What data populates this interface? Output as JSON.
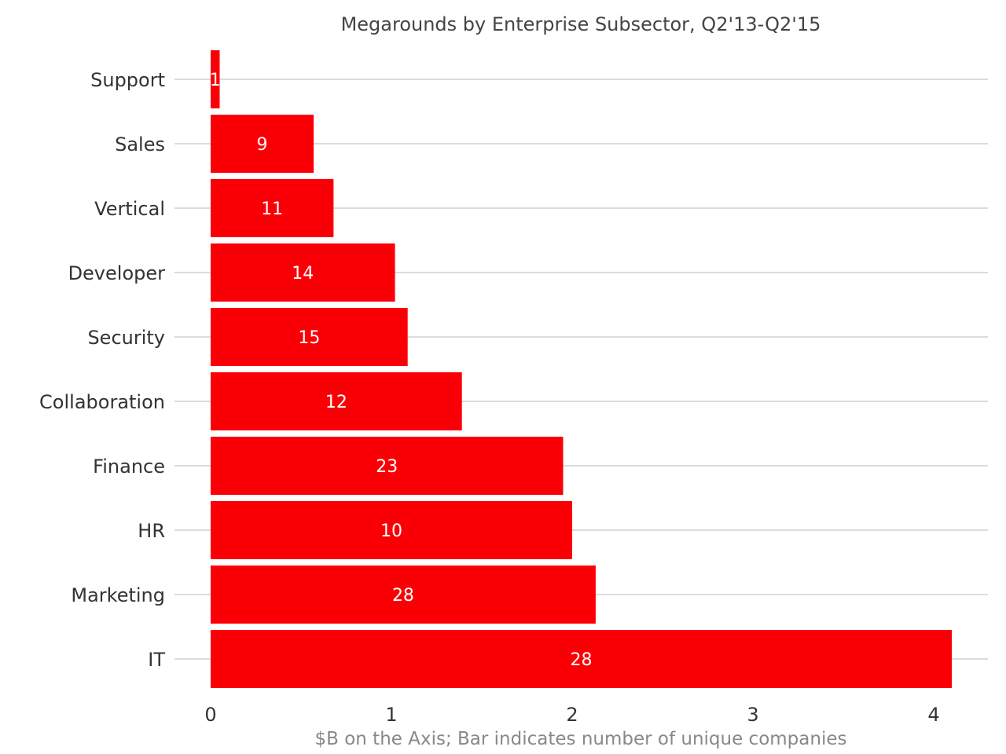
{
  "chart_data": {
    "type": "bar",
    "orientation": "horizontal",
    "title": "Megarounds by Enterprise Subsector, Q2'13-Q2'15",
    "xlabel": "$B on the Axis; Bar indicates number of unique companies",
    "ylabel": "",
    "categories": [
      "Support",
      "Sales",
      "Vertical",
      "Developer",
      "Security",
      "Collaboration",
      "Finance",
      "HR",
      "Marketing",
      "IT"
    ],
    "values": [
      0.05,
      0.57,
      0.68,
      1.02,
      1.09,
      1.39,
      1.95,
      2.0,
      2.13,
      4.1
    ],
    "bar_labels": [
      "1",
      "9",
      "11",
      "14",
      "15",
      "12",
      "23",
      "10",
      "28",
      "28"
    ],
    "xlim": [
      0,
      4.1
    ],
    "xticks": [
      "0",
      "1",
      "2",
      "3",
      "4"
    ],
    "grid": true,
    "bar_color": "#fa0006",
    "legend": "none"
  }
}
